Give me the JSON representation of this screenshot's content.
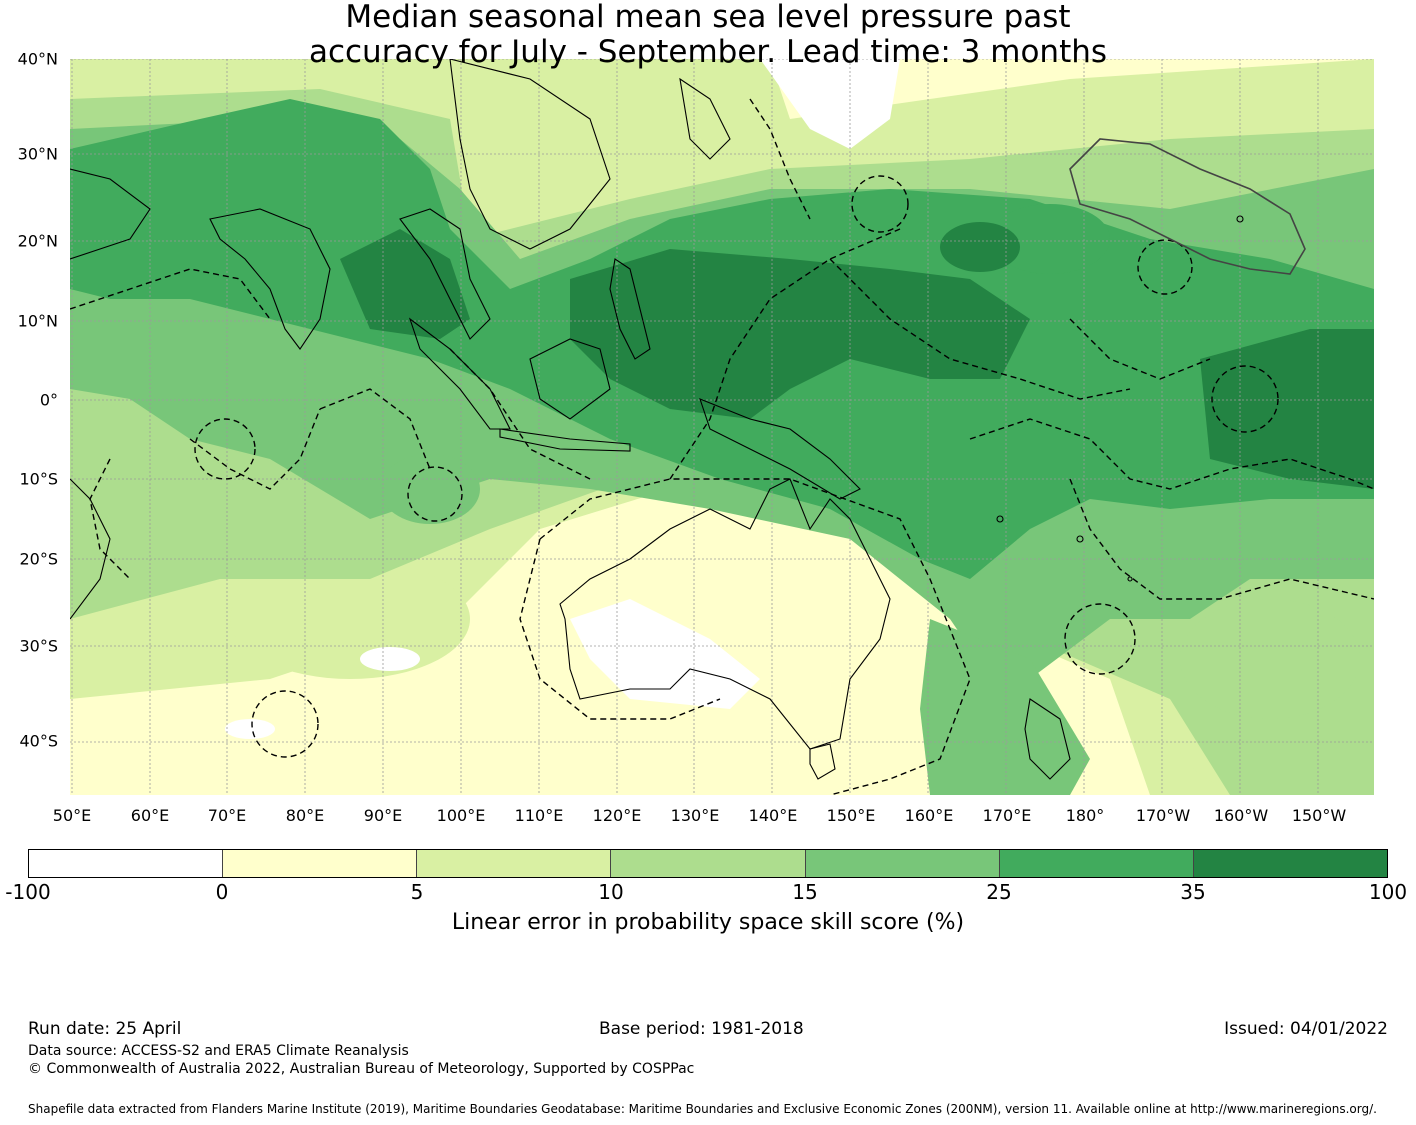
{
  "title_line1": "Median seasonal mean sea level pressure past",
  "title_line2": "accuracy for July - September. Lead time: 3 months",
  "map": {
    "region": "Indo-Pacific",
    "lat_labels": [
      "40°N",
      "30°N",
      "20°N",
      "10°N",
      "0°",
      "10°S",
      "20°S",
      "30°S",
      "40°S"
    ],
    "lon_labels": [
      "50°E",
      "60°E",
      "70°E",
      "80°E",
      "90°E",
      "100°E",
      "110°E",
      "120°E",
      "130°E",
      "140°E",
      "150°E",
      "160°E",
      "170°E",
      "180°",
      "170°W",
      "160°W",
      "150°W"
    ],
    "gridlines": true,
    "boundaries": "maritime EEZ dashed lines"
  },
  "colorbar": {
    "ticks": [
      "-100",
      "0",
      "5",
      "10",
      "15",
      "25",
      "35",
      "100"
    ],
    "colors": [
      "#ffffff",
      "#ffffcc",
      "#d9f0a3",
      "#addd8e",
      "#78c679",
      "#41ab5d",
      "#238443"
    ],
    "label": "Linear error in probability space skill score (%)"
  },
  "footer": {
    "run_date": "Run date: 25 April",
    "base_period": "Base period: 1981-2018",
    "issued": "Issued: 04/01/2022",
    "data_source": "Data source: ACCESS-S2 and ERA5 Climate Reanalysis",
    "copyright": "© Commonwealth of Australia 2022, Australian Bureau of Meteorology, Supported by COSPPac",
    "shapefile": "Shapefile data extracted from Flanders Marine Institute (2019), Maritime Boundaries Geodatabase: Maritime Boundaries and Exclusive Economic Zones (200NM), version 11. Available online at http://www.marineregions.org/."
  }
}
